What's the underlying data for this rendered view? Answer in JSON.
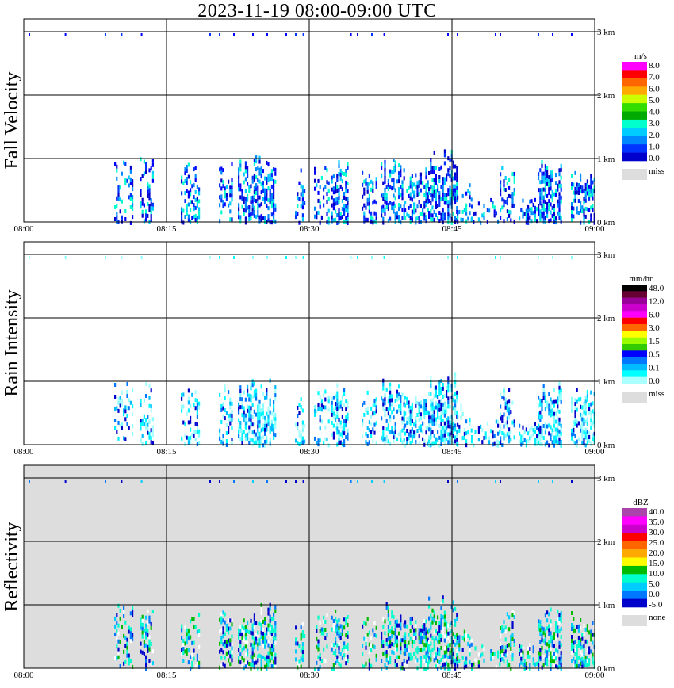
{
  "title": "2023-11-19   08:00-09:00 UTC",
  "chart_data": [
    {
      "type": "heatmap",
      "panel_label": "Fall Velocity",
      "x_ticks": [
        "08:00",
        "08:15",
        "08:30",
        "08:45",
        "09:00"
      ],
      "y_ticks": [
        "0 km",
        "1 km",
        "2 km",
        "3 km"
      ],
      "xlim_minutes": [
        0,
        60
      ],
      "ylim_km": [
        0,
        3.2
      ],
      "grid": true,
      "background": "#ffffff",
      "colorbar": {
        "unit": "m/s",
        "labels": [
          "8.0",
          "7.0",
          "6.0",
          "5.0",
          "4.0",
          "3.0",
          "2.0",
          "1.0",
          "0.0"
        ],
        "colors": [
          "#ff00ff",
          "#ff0000",
          "#ff6600",
          "#ffaa00",
          "#ccff00",
          "#33dd00",
          "#00aa00",
          "#00ffcc",
          "#00ccff",
          "#0088ff",
          "#0033ff",
          "#0000cc"
        ],
        "missing_label": "miss",
        "missing_color": "#dddddd"
      },
      "echo_colors": [
        "#0000ff",
        "#0000cc",
        "#0033ff",
        "#0088ff",
        "#00ccff",
        "#00ffcc"
      ]
    },
    {
      "type": "heatmap",
      "panel_label": "Rain Intensity",
      "x_ticks": [
        "08:00",
        "08:15",
        "08:30",
        "08:45",
        "09:00"
      ],
      "y_ticks": [
        "0 km",
        "1 km",
        "2 km",
        "3 km"
      ],
      "xlim_minutes": [
        0,
        60
      ],
      "ylim_km": [
        0,
        3.2
      ],
      "grid": true,
      "background": "#ffffff",
      "colorbar": {
        "unit": "mm/hr",
        "labels": [
          "48.0",
          "12.0",
          "6.0",
          "3.0",
          "1.5",
          "0.5",
          "0.1",
          "0.0"
        ],
        "colors": [
          "#000000",
          "#660033",
          "#990099",
          "#cc00cc",
          "#ff00ff",
          "#ff0000",
          "#ff6600",
          "#ffff00",
          "#99ff00",
          "#33cc00",
          "#0000ff",
          "#0077ff",
          "#00bbff",
          "#00ffff",
          "#aaffff"
        ],
        "missing_label": "miss",
        "missing_color": "#dddddd"
      },
      "echo_colors": [
        "#aaffff",
        "#88ffff",
        "#00ffff",
        "#00eeff",
        "#00bbff",
        "#0077ff",
        "#0000cc"
      ]
    },
    {
      "type": "heatmap",
      "panel_label": "Reflectivity",
      "x_ticks": [
        "08:00",
        "08:15",
        "08:30",
        "08:45",
        "09:00"
      ],
      "y_ticks": [
        "0 km",
        "1 km",
        "2 km",
        "3 km"
      ],
      "xlim_minutes": [
        0,
        60
      ],
      "ylim_km": [
        0,
        3.2
      ],
      "grid": true,
      "background": "#dddddd",
      "colorbar": {
        "unit": "dBZ",
        "labels": [
          "40.0",
          "35.0",
          "30.0",
          "25.0",
          "20.0",
          "15.0",
          "10.0",
          "5.0",
          "0.0",
          "-5.0"
        ],
        "colors": [
          "#aa44aa",
          "#ff00ff",
          "#cc00cc",
          "#ff0000",
          "#ff6600",
          "#ffaa00",
          "#ffff00",
          "#00bb00",
          "#00ffcc",
          "#00ccff",
          "#0077ff",
          "#0000cc"
        ],
        "missing_label": "none",
        "missing_color": "#dddddd"
      },
      "echo_colors": [
        "#0000cc",
        "#0077ff",
        "#00ccff",
        "#00ffcc",
        "#00ffcc",
        "#00bb00",
        "#ffffff"
      ]
    }
  ]
}
